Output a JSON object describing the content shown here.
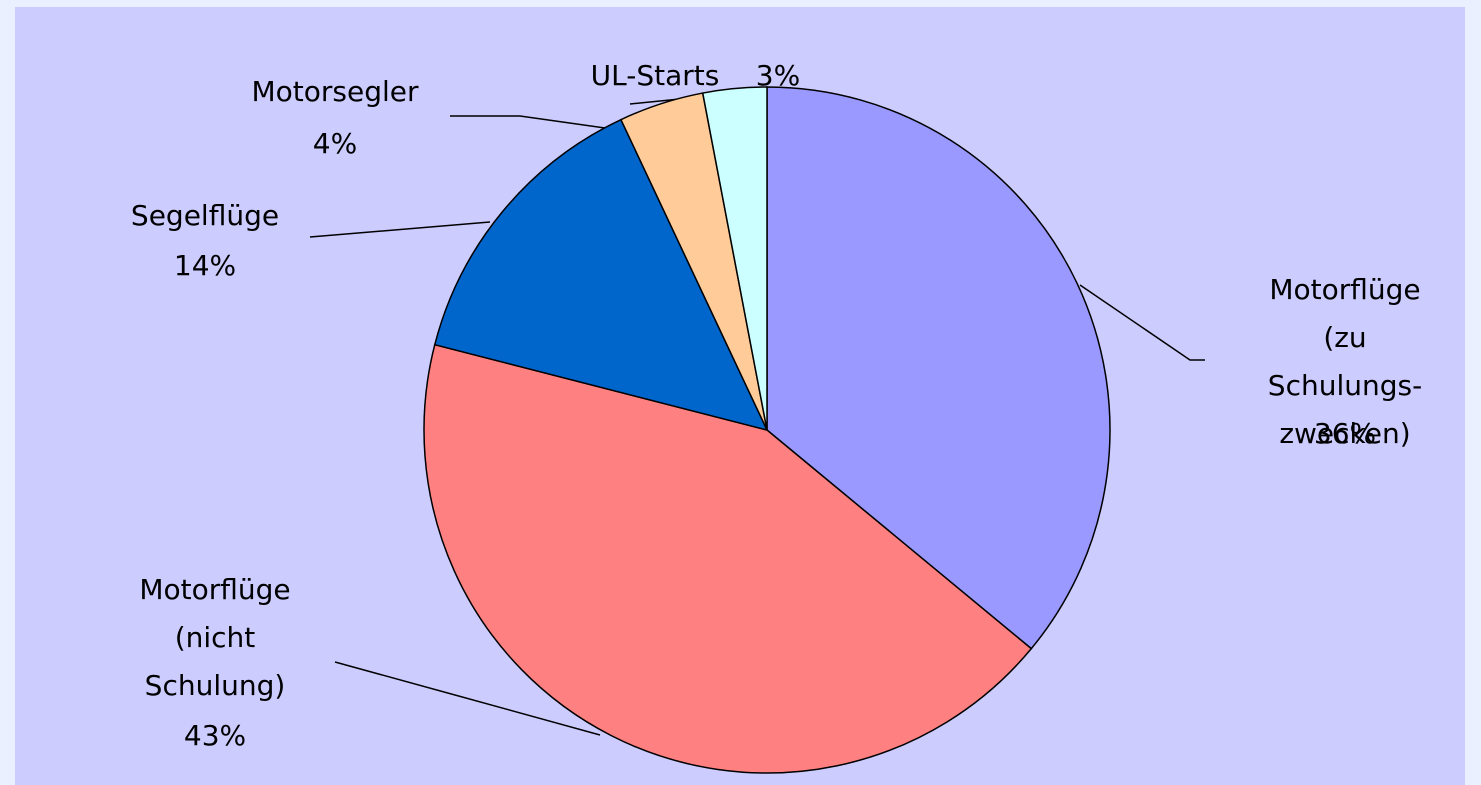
{
  "chart_data": {
    "type": "pie",
    "categories": [
      "Motorflüge (zu\nSchulungs-\nzwecken)",
      "Motorflüge\n(nicht\nSchulung)",
      "Segelflüge",
      "Motorsegler",
      "UL-Starts"
    ],
    "values": [
      36,
      43,
      14,
      4,
      3
    ],
    "value_labels": [
      "36%",
      "43%",
      "14%",
      "4%",
      "3%"
    ],
    "colors": [
      "#9999ff",
      "#ff8080",
      "#0066cc",
      "#ffcc99",
      "#ccffff"
    ]
  }
}
